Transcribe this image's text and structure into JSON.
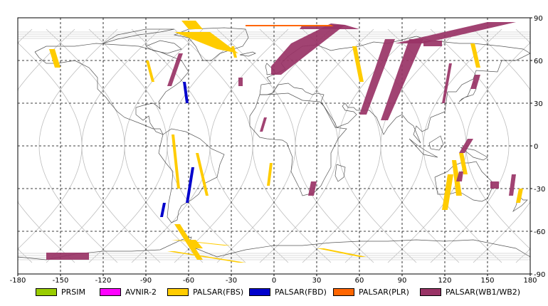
{
  "map": {
    "lon_ticks": [
      "-180",
      "-150",
      "-120",
      "-90",
      "-60",
      "-30",
      "0",
      "30",
      "60",
      "90",
      "120",
      "150",
      "180"
    ],
    "lat_ticks": [
      "90",
      "60",
      "30",
      "0",
      "-30",
      "-60",
      "-90"
    ],
    "lon_values": [
      -180,
      -150,
      -120,
      -90,
      -60,
      -30,
      0,
      30,
      60,
      90,
      120,
      150,
      180
    ],
    "lat_values": [
      90,
      60,
      30,
      0,
      -30,
      -60,
      -90
    ],
    "extent": {
      "lon": [
        -180,
        180
      ],
      "lat": [
        -90,
        90
      ]
    },
    "grid": "dashed",
    "background_orbit_tracks": true
  },
  "legend": {
    "items": [
      {
        "label": "PRSIM",
        "color": "#99cc00"
      },
      {
        "label": "AVNIR-2",
        "color": "#ff00ff"
      },
      {
        "label": "PALSAR(FBS)",
        "color": "#ffcc00"
      },
      {
        "label": "PALSAR(FBD)",
        "color": "#0000cc"
      },
      {
        "label": "PALSAR(PLR)",
        "color": "#ff6600"
      },
      {
        "label": "PALSAR(WB1/WB2)",
        "color": "#993366"
      }
    ]
  },
  "swaths": {
    "wb": [
      [
        [
          -75,
          42
        ],
        [
          -72,
          42
        ],
        [
          -64,
          65
        ],
        [
          -67,
          65
        ]
      ],
      [
        [
          -25,
          42
        ],
        [
          -22,
          42
        ],
        [
          -22,
          48
        ],
        [
          -25,
          48
        ]
      ],
      [
        [
          -10,
          10
        ],
        [
          -8,
          10
        ],
        [
          -5,
          20
        ],
        [
          -7,
          20
        ]
      ],
      [
        [
          -160,
          -75
        ],
        [
          -130,
          -75
        ],
        [
          -130,
          -80
        ],
        [
          -160,
          -80
        ]
      ],
      [
        [
          24,
          -35
        ],
        [
          28,
          -35
        ],
        [
          30,
          -25
        ],
        [
          26,
          -25
        ]
      ],
      [
        [
          -2,
          50
        ],
        [
          5,
          50
        ],
        [
          50,
          85
        ],
        [
          40,
          86
        ],
        [
          12,
          72
        ],
        [
          -2,
          56
        ]
      ],
      [
        [
          18,
          82
        ],
        [
          60,
          82
        ],
        [
          50,
          85
        ],
        [
          20,
          85
        ]
      ],
      [
        [
          60,
          22
        ],
        [
          65,
          22
        ],
        [
          85,
          75
        ],
        [
          78,
          75
        ]
      ],
      [
        [
          75,
          18
        ],
        [
          80,
          18
        ],
        [
          105,
          75
        ],
        [
          95,
          75
        ]
      ],
      [
        [
          85,
          72
        ],
        [
          105,
          72
        ],
        [
          170,
          87
        ],
        [
          150,
          87
        ]
      ],
      [
        [
          105,
          70
        ],
        [
          118,
          70
        ],
        [
          118,
          74
        ],
        [
          105,
          74
        ]
      ],
      [
        [
          118,
          30
        ],
        [
          120,
          30
        ],
        [
          125,
          58
        ],
        [
          123,
          58
        ]
      ],
      [
        [
          138,
          40
        ],
        [
          142,
          40
        ],
        [
          145,
          50
        ],
        [
          141,
          50
        ]
      ],
      [
        [
          130,
          -5
        ],
        [
          134,
          -5
        ],
        [
          140,
          5
        ],
        [
          136,
          5
        ]
      ],
      [
        [
          128,
          -25
        ],
        [
          132,
          -25
        ],
        [
          133,
          -18
        ],
        [
          130,
          -18
        ]
      ],
      [
        [
          165,
          -35
        ],
        [
          168,
          -35
        ],
        [
          170,
          -20
        ],
        [
          167,
          -20
        ]
      ],
      [
        [
          152,
          -30
        ],
        [
          158,
          -30
        ],
        [
          158,
          -25
        ],
        [
          152,
          -25
        ]
      ]
    ],
    "fbs": [
      [
        [
          -65,
          88
        ],
        [
          -55,
          88
        ],
        [
          -50,
          82
        ],
        [
          -60,
          82
        ]
      ],
      [
        [
          -70,
          80
        ],
        [
          -45,
          80
        ],
        [
          -25,
          65
        ],
        [
          -40,
          68
        ]
      ],
      [
        [
          -158,
          68
        ],
        [
          -154,
          68
        ],
        [
          -150,
          55
        ],
        [
          -154,
          55
        ]
      ],
      [
        [
          -90,
          60
        ],
        [
          -88,
          60
        ],
        [
          -84,
          45
        ],
        [
          -86,
          45
        ]
      ],
      [
        [
          -72,
          8
        ],
        [
          -70,
          8
        ],
        [
          -66,
          -30
        ],
        [
          -68,
          -30
        ]
      ],
      [
        [
          -55,
          -5
        ],
        [
          -53,
          -5
        ],
        [
          -46,
          -35
        ],
        [
          -48,
          -35
        ]
      ],
      [
        [
          -70,
          -55
        ],
        [
          -66,
          -55
        ],
        [
          -50,
          -80
        ],
        [
          -54,
          -80
        ]
      ],
      [
        [
          -60,
          -66
        ],
        [
          -55,
          -66
        ],
        [
          -50,
          -72
        ],
        [
          -55,
          -72
        ]
      ],
      [
        [
          30,
          -72
        ],
        [
          35,
          -72
        ],
        [
          65,
          -78
        ],
        [
          60,
          -78
        ]
      ],
      [
        [
          -75,
          -74
        ],
        [
          -70,
          -74
        ],
        [
          -20,
          -82
        ],
        [
          -25,
          -82
        ]
      ],
      [
        [
          -72,
          -66
        ],
        [
          -68,
          -66
        ],
        [
          -30,
          -70
        ],
        [
          -35,
          -70
        ]
      ],
      [
        [
          -5,
          -28
        ],
        [
          -3,
          -28
        ],
        [
          -1,
          -12
        ],
        [
          -3,
          -12
        ]
      ],
      [
        [
          -30,
          70
        ],
        [
          -28,
          70
        ],
        [
          -26,
          62
        ],
        [
          -28,
          62
        ]
      ],
      [
        [
          55,
          70
        ],
        [
          58,
          70
        ],
        [
          63,
          45
        ],
        [
          60,
          45
        ]
      ],
      [
        [
          118,
          -45
        ],
        [
          122,
          -45
        ],
        [
          126,
          -20
        ],
        [
          122,
          -20
        ]
      ],
      [
        [
          125,
          -10
        ],
        [
          128,
          -10
        ],
        [
          132,
          -35
        ],
        [
          128,
          -35
        ]
      ],
      [
        [
          130,
          -5
        ],
        [
          133,
          -5
        ],
        [
          136,
          -20
        ],
        [
          133,
          -20
        ]
      ],
      [
        [
          170,
          -40
        ],
        [
          173,
          -40
        ],
        [
          175,
          -30
        ],
        [
          172,
          -30
        ]
      ],
      [
        [
          138,
          72
        ],
        [
          141,
          72
        ],
        [
          145,
          55
        ],
        [
          142,
          55
        ]
      ]
    ],
    "fbd": [
      [
        [
          -64,
          45
        ],
        [
          -62,
          45
        ],
        [
          -60,
          30
        ],
        [
          -62,
          30
        ]
      ],
      [
        [
          -58,
          -15
        ],
        [
          -56,
          -15
        ],
        [
          -60,
          -40
        ],
        [
          -62,
          -40
        ]
      ],
      [
        [
          -80,
          -50
        ],
        [
          -78,
          -50
        ],
        [
          -76,
          -40
        ],
        [
          -78,
          -40
        ]
      ]
    ],
    "plr": [
      [
        [
          -20,
          85
        ],
        [
          40,
          85
        ],
        [
          42,
          84
        ],
        [
          -20,
          84
        ]
      ]
    ]
  }
}
